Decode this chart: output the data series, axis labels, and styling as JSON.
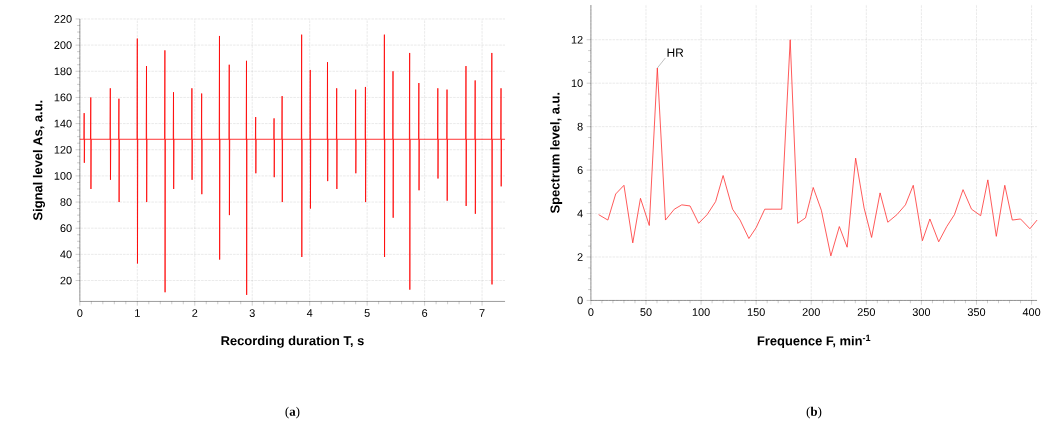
{
  "chart_data": [
    {
      "type": "line",
      "xlabel": "Recording duration T, s",
      "ylabel": "Signal level As, a.u.",
      "xlim": [
        0,
        7.4
      ],
      "ylim": [
        4,
        220
      ],
      "xticks": [
        0,
        1,
        2,
        3,
        4,
        5,
        6,
        7
      ],
      "yticks": [
        20,
        40,
        60,
        80,
        100,
        120,
        140,
        160,
        180,
        200,
        220
      ],
      "grid": true,
      "annotations": [
        "(**a**)"
      ],
      "series": [
        {
          "color": "#ff0000",
          "x": [
            0.0,
            0.07,
            0.075,
            0.078,
            0.083,
            0.185,
            0.19,
            0.193,
            0.198,
            0.525,
            0.53,
            0.533,
            0.538,
            0.675,
            0.68,
            0.683,
            0.688,
            0.995,
            1.0,
            1.003,
            1.008,
            1.155,
            1.16,
            1.163,
            1.168,
            1.475,
            1.48,
            1.483,
            1.488,
            1.625,
            1.63,
            1.633,
            1.638,
            1.945,
            1.95,
            1.953,
            1.958,
            2.115,
            2.12,
            2.123,
            2.128,
            2.425,
            2.43,
            2.433,
            2.438,
            2.595,
            2.6,
            2.603,
            2.608,
            2.895,
            2.9,
            2.903,
            2.908,
            3.055,
            3.06,
            3.063,
            3.068,
            3.375,
            3.38,
            3.383,
            3.388,
            3.515,
            3.52,
            3.523,
            3.528,
            3.855,
            3.86,
            3.863,
            3.868,
            4.005,
            4.01,
            4.013,
            4.018,
            4.305,
            4.31,
            4.313,
            4.318,
            4.465,
            4.47,
            4.473,
            4.478,
            4.795,
            4.8,
            4.803,
            4.808,
            4.965,
            4.97,
            4.973,
            4.978,
            5.295,
            5.3,
            5.303,
            5.308,
            5.445,
            5.45,
            5.453,
            5.458,
            5.735,
            5.74,
            5.743,
            5.748,
            5.895,
            5.9,
            5.903,
            5.908,
            6.225,
            6.23,
            6.233,
            6.238,
            6.385,
            6.39,
            6.393,
            6.398,
            6.715,
            6.72,
            6.723,
            6.728,
            6.875,
            6.88,
            6.883,
            6.888,
            7.165,
            7.17,
            7.173,
            7.178,
            7.325,
            7.33,
            7.333,
            7.338,
            7.4
          ],
          "values": [
            128,
            128,
            148,
            110,
            128,
            128,
            160,
            90,
            128,
            128,
            167,
            97,
            128,
            128,
            159,
            80,
            128,
            128,
            205,
            33,
            128,
            128,
            184,
            80,
            128,
            128,
            196,
            11,
            128,
            128,
            164,
            90,
            128,
            128,
            167,
            97,
            128,
            128,
            163,
            86,
            128,
            128,
            207,
            36,
            128,
            128,
            185,
            70,
            128,
            128,
            188,
            9,
            128,
            128,
            145,
            102,
            128,
            128,
            144,
            99,
            128,
            128,
            161,
            80,
            128,
            128,
            208,
            38,
            128,
            128,
            181,
            75,
            128,
            128,
            187,
            96,
            128,
            128,
            167,
            90,
            128,
            128,
            166,
            102,
            128,
            128,
            168,
            80,
            128,
            128,
            208,
            38,
            128,
            128,
            180,
            68,
            128,
            128,
            194,
            13,
            128,
            128,
            171,
            89,
            128,
            128,
            167,
            98,
            128,
            128,
            166,
            81,
            128,
            128,
            184,
            77,
            128,
            128,
            173,
            71,
            128,
            128,
            194,
            17,
            128,
            128,
            167,
            92,
            128,
            128
          ]
        }
      ]
    },
    {
      "type": "line",
      "xlabel": "Frequence F, min$^{-1}$",
      "ylabel": "Spectrum level, a.u.",
      "xlim": [
        0,
        405
      ],
      "ylim": [
        0,
        13.6
      ],
      "xticks": [
        0,
        50,
        100,
        150,
        200,
        250,
        300,
        350,
        400
      ],
      "yticks": [
        0,
        2,
        4,
        6,
        8,
        10,
        12
      ],
      "grid": true,
      "annotations": [
        {
          "text": "HR",
          "x": 60.3,
          "y": 10.7
        },
        "(**b**)"
      ],
      "series": [
        {
          "color": "#ff3030",
          "x": [
            7,
            15.4,
            22.5,
            30,
            38,
            45,
            53,
            60.3,
            67.7,
            75.7,
            82.5,
            90,
            97.8,
            105.5,
            113.2,
            120,
            128.6,
            135.4,
            143.4,
            150,
            157.8,
            173.2,
            180.9,
            187.7,
            194.8,
            201.8,
            209.2,
            217.8,
            225.5,
            232.6,
            240.3,
            248,
            254.8,
            262.5,
            269.5,
            277.8,
            285.5,
            292.6,
            300.9,
            307.7,
            315.7,
            323,
            330,
            337.8,
            345.5,
            353.8,
            360.3,
            368,
            375.7,
            382.5,
            390,
            398.5,
            405
          ],
          "values": [
            3.95,
            3.7,
            4.9,
            5.3,
            2.65,
            4.7,
            3.45,
            10.7,
            3.7,
            4.2,
            4.4,
            4.35,
            3.55,
            3.95,
            4.55,
            5.75,
            4.2,
            3.7,
            2.85,
            3.35,
            4.2,
            4.2,
            12.0,
            3.55,
            3.8,
            5.2,
            4.15,
            2.05,
            3.4,
            2.45,
            6.55,
            4.25,
            2.9,
            4.95,
            3.6,
            3.95,
            4.4,
            5.3,
            2.75,
            3.75,
            2.7,
            3.4,
            3.95,
            5.1,
            4.2,
            3.9,
            5.55,
            2.95,
            5.3,
            3.7,
            3.75,
            3.3,
            3.7
          ]
        }
      ]
    }
  ]
}
